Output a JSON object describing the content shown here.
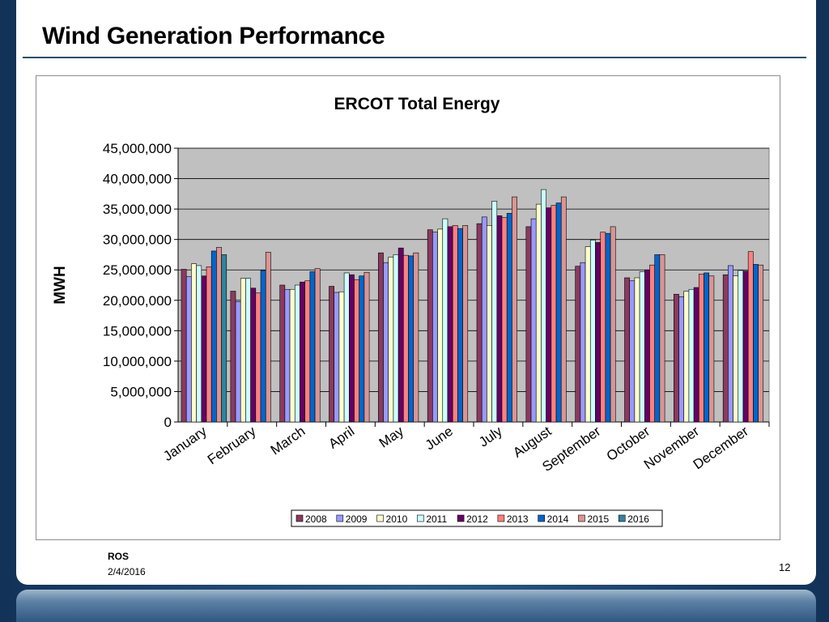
{
  "slide": {
    "title": "Wind Generation Performance",
    "footer_label": "ROS",
    "footer_date": "2/4/2016",
    "page_number": "12"
  },
  "chart_data": {
    "type": "bar",
    "title": "ERCOT Total Energy",
    "xlabel": "",
    "ylabel": "MWH",
    "ylim": [
      0,
      45000000
    ],
    "yticks": [
      0,
      5000000,
      10000000,
      15000000,
      20000000,
      25000000,
      30000000,
      35000000,
      40000000,
      45000000
    ],
    "ytick_labels": [
      "0",
      "5,000,000",
      "10,000,000",
      "15,000,000",
      "20,000,000",
      "25,000,000",
      "30,000,000",
      "35,000,000",
      "40,000,000",
      "45,000,000"
    ],
    "grid": true,
    "legend_position": "bottom",
    "categories": [
      "January",
      "February",
      "March",
      "April",
      "May",
      "June",
      "July",
      "August",
      "September",
      "October",
      "November",
      "December"
    ],
    "series": [
      {
        "name": "2008",
        "color": "#8b3a5e",
        "values": [
          25100000,
          21500000,
          22500000,
          22300000,
          27800000,
          31600000,
          32600000,
          32100000,
          25600000,
          23700000,
          21000000,
          24200000
        ]
      },
      {
        "name": "2009",
        "color": "#9999ff",
        "values": [
          23900000,
          19800000,
          21800000,
          21300000,
          26200000,
          31200000,
          33700000,
          33400000,
          26200000,
          23200000,
          20600000,
          25700000
        ]
      },
      {
        "name": "2010",
        "color": "#ffffcc",
        "values": [
          26000000,
          23600000,
          21800000,
          21400000,
          27100000,
          31700000,
          32300000,
          35800000,
          28800000,
          23700000,
          21500000,
          24000000
        ]
      },
      {
        "name": "2011",
        "color": "#ccffff",
        "values": [
          25700000,
          23600000,
          22500000,
          24500000,
          27500000,
          33400000,
          36300000,
          38200000,
          29900000,
          24700000,
          21800000,
          24900000
        ]
      },
      {
        "name": "2012",
        "color": "#660066",
        "values": [
          24000000,
          22000000,
          23000000,
          24200000,
          28600000,
          32100000,
          33900000,
          35200000,
          29500000,
          25000000,
          22100000,
          24800000
        ]
      },
      {
        "name": "2013",
        "color": "#ff8080",
        "values": [
          25500000,
          21200000,
          23200000,
          23400000,
          27400000,
          32300000,
          33600000,
          35600000,
          31200000,
          25800000,
          24300000,
          28000000
        ]
      },
      {
        "name": "2014",
        "color": "#0066cc",
        "values": [
          28100000,
          24900000,
          24700000,
          24000000,
          27300000,
          31800000,
          34300000,
          36000000,
          31000000,
          27500000,
          24500000,
          25900000
        ]
      },
      {
        "name": "2015",
        "color": "#d99594",
        "values": [
          28700000,
          27900000,
          25200000,
          24600000,
          27800000,
          32300000,
          37000000,
          37000000,
          32100000,
          27500000,
          24000000,
          25800000
        ]
      },
      {
        "name": "2016",
        "color": "#31849b",
        "values": [
          27500000,
          null,
          null,
          null,
          null,
          null,
          null,
          null,
          null,
          null,
          null,
          null
        ]
      }
    ]
  }
}
